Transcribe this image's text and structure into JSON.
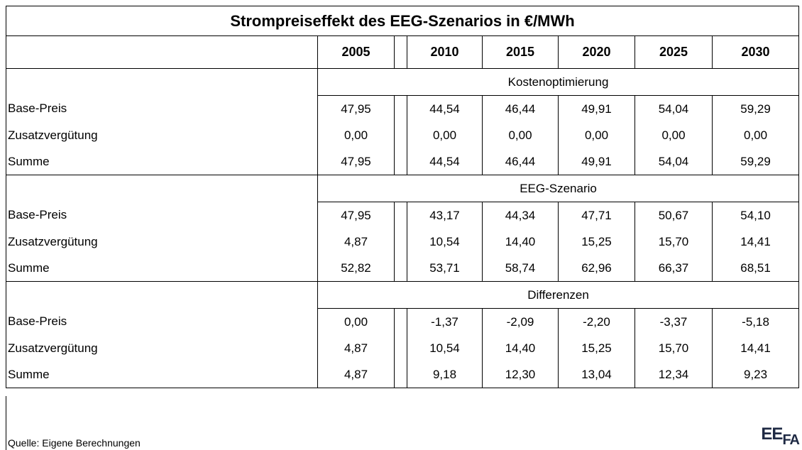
{
  "title": "Strompreiseffekt des EEG-Szenarios in €/MWh",
  "years": [
    "2005",
    "2010",
    "2015",
    "2020",
    "2025",
    "2030"
  ],
  "sections": [
    {
      "label": "Kostenoptimierung",
      "rows": [
        {
          "label": "Base-Preis",
          "values": [
            "47,95",
            "44,54",
            "46,44",
            "49,91",
            "54,04",
            "59,29"
          ]
        },
        {
          "label": "Zusatzvergütung",
          "values": [
            "0,00",
            "0,00",
            "0,00",
            "0,00",
            "0,00",
            "0,00"
          ]
        },
        {
          "label": "Summe",
          "values": [
            "47,95",
            "44,54",
            "46,44",
            "49,91",
            "54,04",
            "59,29"
          ]
        }
      ]
    },
    {
      "label": "EEG-Szenario",
      "rows": [
        {
          "label": "Base-Preis",
          "values": [
            "47,95",
            "43,17",
            "44,34",
            "47,71",
            "50,67",
            "54,10"
          ]
        },
        {
          "label": "Zusatzvergütung",
          "values": [
            "4,87",
            "10,54",
            "14,40",
            "15,25",
            "15,70",
            "14,41"
          ]
        },
        {
          "label": "Summe",
          "values": [
            "52,82",
            "53,71",
            "58,74",
            "62,96",
            "66,37",
            "68,51"
          ]
        }
      ]
    },
    {
      "label": "Differenzen",
      "rows": [
        {
          "label": "Base-Preis",
          "values": [
            "0,00",
            "-1,37",
            "-2,09",
            "-2,20",
            "-3,37",
            "-5,18"
          ]
        },
        {
          "label": "Zusatzvergütung",
          "values": [
            "4,87",
            "10,54",
            "14,40",
            "15,25",
            "15,70",
            "14,41"
          ]
        },
        {
          "label": "Summe",
          "values": [
            "4,87",
            "9,18",
            "12,30",
            "13,04",
            "12,34",
            "9,23"
          ]
        }
      ]
    }
  ],
  "source": "Quelle: Eigene Berechnungen",
  "logo": [
    "EE",
    "FA"
  ]
}
